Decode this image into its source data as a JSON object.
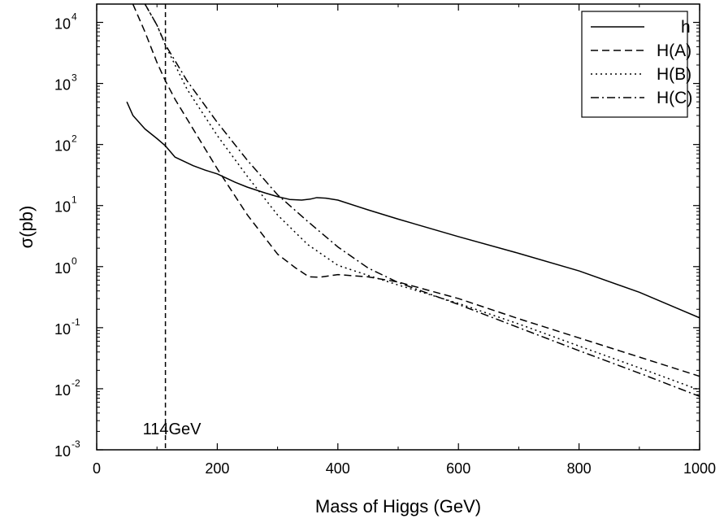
{
  "chart_data": {
    "type": "line",
    "title": "",
    "xlabel": "Mass of Higgs (GeV)",
    "ylabel": "σ(pb)",
    "xlim": [
      0,
      1000
    ],
    "ylim_log10": [
      -3,
      4.3
    ],
    "yscale": "log",
    "x_ticks": [
      {
        "value": 0,
        "label": "0"
      },
      {
        "value": 200,
        "label": "200"
      },
      {
        "value": 400,
        "label": "400"
      },
      {
        "value": 600,
        "label": "600"
      },
      {
        "value": 800,
        "label": "800"
      },
      {
        "value": 1000,
        "label": "1000"
      }
    ],
    "y_ticks": [
      {
        "exp": -3,
        "base": "10",
        "sup": "-3"
      },
      {
        "exp": -2,
        "base": "10",
        "sup": "-2"
      },
      {
        "exp": -1,
        "base": "10",
        "sup": "-1"
      },
      {
        "exp": 0,
        "base": "10",
        "sup": "0"
      },
      {
        "exp": 1,
        "base": "10",
        "sup": "1"
      },
      {
        "exp": 2,
        "base": "10",
        "sup": "2"
      },
      {
        "exp": 3,
        "base": "10",
        "sup": "3"
      },
      {
        "exp": 4,
        "base": "10",
        "sup": "4"
      }
    ],
    "legend_position": "top-right",
    "grid": false,
    "series": [
      {
        "name": "h",
        "dash": "solid",
        "points": [
          [
            50,
            500
          ],
          [
            60,
            300
          ],
          [
            80,
            180
          ],
          [
            100,
            125
          ],
          [
            114,
            95
          ],
          [
            130,
            62
          ],
          [
            160,
            45
          ],
          [
            180,
            38
          ],
          [
            200,
            33
          ],
          [
            230,
            24
          ],
          [
            250,
            20
          ],
          [
            280,
            16
          ],
          [
            300,
            14
          ],
          [
            320,
            12.6
          ],
          [
            340,
            12.3
          ],
          [
            355,
            12.8
          ],
          [
            365,
            13.5
          ],
          [
            380,
            13.2
          ],
          [
            400,
            12.3
          ],
          [
            450,
            8.5
          ],
          [
            500,
            6
          ],
          [
            600,
            3.1
          ],
          [
            700,
            1.65
          ],
          [
            800,
            0.85
          ],
          [
            900,
            0.38
          ],
          [
            1000,
            0.145
          ]
        ]
      },
      {
        "name": "H(A)",
        "dash": "dashed",
        "points": [
          [
            60,
            20000
          ],
          [
            80,
            7000
          ],
          [
            100,
            2200
          ],
          [
            114,
            1100
          ],
          [
            130,
            550
          ],
          [
            150,
            260
          ],
          [
            200,
            40
          ],
          [
            250,
            7
          ],
          [
            300,
            1.6
          ],
          [
            330,
            0.95
          ],
          [
            352,
            0.68
          ],
          [
            370,
            0.67
          ],
          [
            400,
            0.74
          ],
          [
            450,
            0.68
          ],
          [
            500,
            0.56
          ],
          [
            600,
            0.3
          ],
          [
            700,
            0.14
          ],
          [
            800,
            0.068
          ],
          [
            900,
            0.033
          ],
          [
            1000,
            0.016
          ]
        ]
      },
      {
        "name": "H(B)",
        "dash": "dotted",
        "points": [
          [
            80,
            20000
          ],
          [
            100,
            9000
          ],
          [
            114,
            4200
          ],
          [
            130,
            2000
          ],
          [
            150,
            800
          ],
          [
            200,
            140
          ],
          [
            250,
            30
          ],
          [
            300,
            7
          ],
          [
            350,
            2.3
          ],
          [
            400,
            1.05
          ],
          [
            450,
            0.72
          ],
          [
            500,
            0.5
          ],
          [
            600,
            0.25
          ],
          [
            700,
            0.115
          ],
          [
            800,
            0.05
          ],
          [
            900,
            0.022
          ],
          [
            1000,
            0.0095
          ]
        ]
      },
      {
        "name": "H(C)",
        "dash": "dashdot",
        "points": [
          [
            80,
            20000
          ],
          [
            100,
            9000
          ],
          [
            114,
            4300
          ],
          [
            150,
            1100
          ],
          [
            200,
            230
          ],
          [
            250,
            55
          ],
          [
            300,
            15
          ],
          [
            350,
            5.5
          ],
          [
            400,
            2.1
          ],
          [
            450,
            0.95
          ],
          [
            500,
            0.55
          ],
          [
            600,
            0.24
          ],
          [
            700,
            0.1
          ],
          [
            800,
            0.042
          ],
          [
            900,
            0.018
          ],
          [
            1000,
            0.0075
          ]
        ]
      }
    ],
    "annotations": [
      {
        "type": "vline",
        "x": 114,
        "dash": "dashed",
        "text": "114GeV",
        "text_y": 0.0018
      }
    ]
  }
}
